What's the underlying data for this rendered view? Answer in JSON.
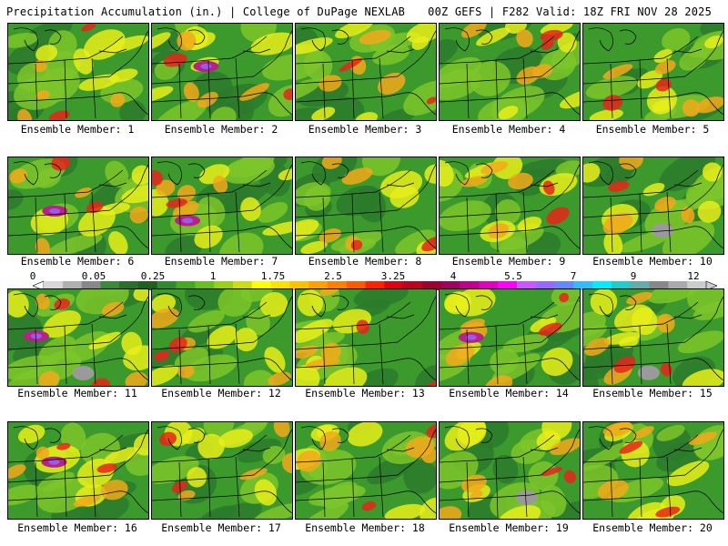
{
  "header": {
    "title_left": "Precipitation Accumulation (in.) | College of DuPage NEXLAB",
    "title_right": "00Z GEFS | F282 Valid: 18Z FRI NOV 28 2025"
  },
  "panels": [
    {
      "label": "Ensemble Member: 1"
    },
    {
      "label": "Ensemble Member: 2"
    },
    {
      "label": "Ensemble Member: 3"
    },
    {
      "label": "Ensemble Member: 4"
    },
    {
      "label": "Ensemble Member: 5"
    },
    {
      "label": "Ensemble Member: 6"
    },
    {
      "label": "Ensemble Member: 7"
    },
    {
      "label": "Ensemble Member: 8"
    },
    {
      "label": "Ensemble Member: 9"
    },
    {
      "label": "Ensemble Member: 10"
    },
    {
      "label": "Ensemble Member: 11"
    },
    {
      "label": "Ensemble Member: 12"
    },
    {
      "label": "Ensemble Member: 13"
    },
    {
      "label": "Ensemble Member: 14"
    },
    {
      "label": "Ensemble Member: 15"
    },
    {
      "label": "Ensemble Member: 16"
    },
    {
      "label": "Ensemble Member: 17"
    },
    {
      "label": "Ensemble Member: 18"
    },
    {
      "label": "Ensemble Member: 19"
    },
    {
      "label": "Ensemble Member: 20"
    }
  ],
  "colorbar": {
    "labels": [
      "0",
      "0.05",
      "0.25",
      "1",
      "1.75",
      "2.5",
      "3.25",
      "4",
      "5.5",
      "7",
      "9",
      "12"
    ],
    "colors": [
      "#d8d8d8",
      "#b0b0b0",
      "#888888",
      "#3a8a3a",
      "#2c6e2c",
      "#1f5f1f",
      "#2e8b2e",
      "#44aa22",
      "#66c022",
      "#99d01a",
      "#ccdd11",
      "#ffff00",
      "#ffe000",
      "#ffc000",
      "#ffa000",
      "#ff8000",
      "#ff5a00",
      "#ff2000",
      "#e00010",
      "#c00020",
      "#a00030",
      "#a00060",
      "#c0008a",
      "#e000c0",
      "#ff00ff",
      "#cc55ff",
      "#9966ff",
      "#6688ff",
      "#33bbff",
      "#00eeff",
      "#22cccc",
      "#66aaaa",
      "#888888",
      "#aaaaaa",
      "#cccccc"
    ]
  },
  "palette": {
    "dark_green": "#2c7a2c",
    "green": "#3c9a2c",
    "light_green": "#7cc62a",
    "yellow": "#e8ee1a",
    "orange": "#f2a81a",
    "red": "#e8241a",
    "magenta": "#b8208a",
    "violet": "#9a5ce8",
    "gray": "#9a9a9a",
    "map_lines": "#000000"
  }
}
